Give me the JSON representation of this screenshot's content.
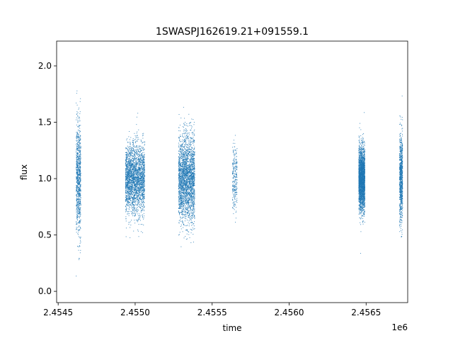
{
  "chart_data": {
    "type": "scatter",
    "title": "1SWASPJ162619.21+091559.1",
    "xlabel": "time",
    "ylabel": "flux",
    "x_offset_label": "1e6",
    "xlim": [
      2454490,
      2456770
    ],
    "ylim": [
      -0.1,
      2.22
    ],
    "x_ticks": [
      2454500,
      2455000,
      2455500,
      2456000,
      2456500
    ],
    "x_tick_labels": [
      "2.4545",
      "2.4550",
      "2.4555",
      "2.4560",
      "2.4565"
    ],
    "y_ticks": [
      0.0,
      0.5,
      1.0,
      1.5,
      2.0
    ],
    "y_tick_labels": [
      "0.0",
      "0.5",
      "1.0",
      "1.5",
      "2.0"
    ],
    "grid": false,
    "marker_color": "#1f77b4",
    "series": [
      {
        "clusters": [
          {
            "x_start": 2454615,
            "x_end": 2454645,
            "y_center": 1.0,
            "y_spread": 0.45,
            "density": "medium"
          },
          {
            "x_start": 2454935,
            "x_end": 2455060,
            "y_center": 1.0,
            "y_spread": 0.28,
            "density": "high"
          },
          {
            "x_start": 2455280,
            "x_end": 2455385,
            "y_center": 1.0,
            "y_spread": 0.35,
            "density": "high"
          },
          {
            "x_start": 2455630,
            "x_end": 2455660,
            "y_center": 1.0,
            "y_spread": 0.25,
            "density": "low"
          },
          {
            "x_start": 2456450,
            "x_end": 2456490,
            "y_center": 1.0,
            "y_spread": 0.25,
            "density": "high"
          },
          {
            "x_start": 2456715,
            "x_end": 2456735,
            "y_center": 1.0,
            "y_spread": 0.35,
            "density": "medium"
          }
        ]
      }
    ]
  }
}
